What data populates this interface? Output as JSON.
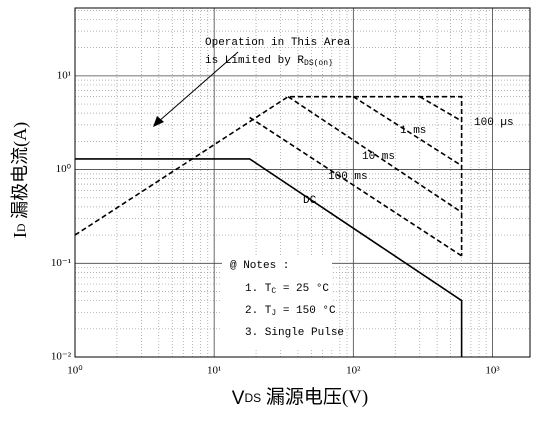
{
  "chart_data": {
    "type": "line",
    "log_x": true,
    "log_y": true,
    "grid": true,
    "xlabel": {
      "main": "V",
      "sub": "DS",
      "rest": " 漏源电压(V)"
    },
    "ylabel": {
      "main": "I",
      "sub": "D",
      "rest": " 漏极电流(A)"
    },
    "xlim": [
      1,
      1860
    ],
    "ylim": [
      0.01,
      53
    ],
    "xticks": [
      {
        "value": 1,
        "label": "10⁰"
      },
      {
        "value": 10,
        "label": "10¹"
      },
      {
        "value": 100,
        "label": "10²"
      },
      {
        "value": 1000,
        "label": "10³"
      }
    ],
    "yticks": [
      {
        "value": 0.01,
        "label": "10⁻²"
      },
      {
        "value": 0.1,
        "label": "10⁻¹"
      },
      {
        "value": 1,
        "label": "10⁰"
      },
      {
        "value": 10,
        "label": "10¹"
      }
    ],
    "series": [
      {
        "name": "DC",
        "color": "#000000",
        "style": "solid",
        "x": [
          1,
          18,
          600,
          600
        ],
        "values": [
          1.3,
          1.3,
          0.04,
          0.01
        ]
      },
      {
        "name": "100 ms",
        "color": "#000000",
        "style": "dashed",
        "x": [
          18,
          600
        ],
        "values": [
          3.6,
          0.12
        ]
      },
      {
        "name": "10 ms",
        "color": "#000000",
        "style": "dashed",
        "x": [
          34,
          600
        ],
        "values": [
          6,
          0.35
        ]
      },
      {
        "name": "1 ms",
        "color": "#000000",
        "style": "dashed",
        "x": [
          100,
          600
        ],
        "values": [
          6,
          1.1
        ]
      },
      {
        "name": "100 µs",
        "color": "#000000",
        "style": "dashed",
        "x": [
          300,
          600
        ],
        "values": [
          6,
          3.3
        ]
      },
      {
        "name": null,
        "color": "#000000",
        "style": "dashed",
        "x": [
          1,
          34,
          600,
          600
        ],
        "values": [
          0.2,
          6,
          6,
          0.12
        ]
      }
    ],
    "annotation": {
      "line1": "Operation in This Area",
      "line2": "is Limited by R",
      "sub": "DS(on)"
    },
    "notes": {
      "title": "@ Notes :",
      "items": [
        {
          "prefix": "1. T",
          "sub": "C",
          "suffix": " = 25 °C"
        },
        {
          "prefix": "2. T",
          "sub": "J",
          "suffix": " = 150 °C"
        },
        {
          "prefix": "3. Single Pulse",
          "sub": null,
          "suffix": null
        }
      ]
    }
  }
}
